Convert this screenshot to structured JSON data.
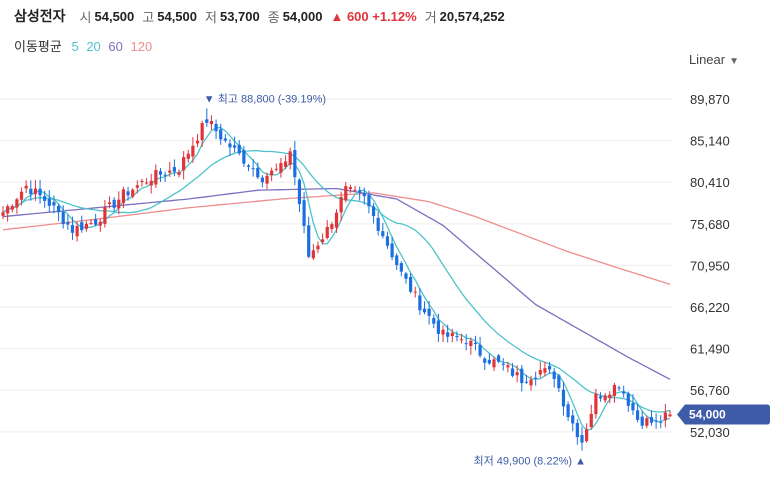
{
  "header": {
    "name": "삼성전자",
    "open_label": "시",
    "open": "54,500",
    "high_label": "고",
    "high": "54,500",
    "low_label": "저",
    "low": "53,700",
    "close_label": "종",
    "close": "54,000",
    "change": "▲ 600 +1.12%",
    "volume_label": "거",
    "volume": "20,574,252"
  },
  "ma_legend": {
    "label": "이동평균",
    "periods": [
      {
        "text": "5",
        "color": "#4fc3c9"
      },
      {
        "text": "20",
        "color": "#4fc3c9"
      },
      {
        "text": "60",
        "color": "#7e6fbf"
      },
      {
        "text": "120",
        "color": "#ee8e8e"
      }
    ]
  },
  "scale_button": {
    "label": "Linear",
    "icon": "chevron-down-icon"
  },
  "chart_data": {
    "type": "candlestick",
    "ylim": [
      49900,
      91500
    ],
    "y_ticks": [
      89870,
      85140,
      80410,
      75680,
      70950,
      66220,
      61490,
      56760,
      52030
    ],
    "y_tick_labels": [
      "89,870",
      "85,140",
      "80,410",
      "75,680",
      "70,950",
      "66,220",
      "61,490",
      "56,760",
      "52,030"
    ],
    "colors": {
      "up": "#e0333a",
      "down": "#1b6fe0",
      "ma5": "#4fc3c9",
      "ma20": "#4fc3c9",
      "ma60": "#7e6fbf",
      "ma120": "#ee8e8e",
      "tag": "#3d5ba7"
    },
    "high_annotation": "최고 88,800 (-39.19%)",
    "high_value": 88800,
    "low_annotation": "최저 49,900 (8.22%)",
    "low_value": 49900,
    "current_price_label": "54,000",
    "current_price": 54000,
    "anchors": [
      {
        "i": 0,
        "v": 77000
      },
      {
        "i": 5,
        "v": 80000
      },
      {
        "i": 10,
        "v": 78000
      },
      {
        "i": 15,
        "v": 75000
      },
      {
        "i": 20,
        "v": 76000
      },
      {
        "i": 26,
        "v": 79000
      },
      {
        "i": 32,
        "v": 81000
      },
      {
        "i": 38,
        "v": 82000
      },
      {
        "i": 44,
        "v": 87500
      },
      {
        "i": 48,
        "v": 85000
      },
      {
        "i": 52,
        "v": 83000
      },
      {
        "i": 56,
        "v": 81000
      },
      {
        "i": 60,
        "v": 82000
      },
      {
        "i": 62,
        "v": 84000
      },
      {
        "i": 64,
        "v": 78000
      },
      {
        "i": 66,
        "v": 72000
      },
      {
        "i": 70,
        "v": 75000
      },
      {
        "i": 74,
        "v": 79500
      },
      {
        "i": 78,
        "v": 78500
      },
      {
        "i": 82,
        "v": 74500
      },
      {
        "i": 86,
        "v": 70000
      },
      {
        "i": 90,
        "v": 66500
      },
      {
        "i": 95,
        "v": 63000
      },
      {
        "i": 100,
        "v": 62500
      },
      {
        "i": 104,
        "v": 60500
      },
      {
        "i": 108,
        "v": 59500
      },
      {
        "i": 112,
        "v": 58000
      },
      {
        "i": 116,
        "v": 59000
      },
      {
        "i": 119,
        "v": 58500
      },
      {
        "i": 122,
        "v": 54000
      },
      {
        "i": 125,
        "v": 51000
      },
      {
        "i": 128,
        "v": 56000
      },
      {
        "i": 133,
        "v": 57500
      },
      {
        "i": 137,
        "v": 53500
      },
      {
        "i": 141,
        "v": 53000
      },
      {
        "i": 144,
        "v": 54000
      }
    ],
    "ma60_points": [
      {
        "i": 0,
        "v": 76500
      },
      {
        "i": 20,
        "v": 77500
      },
      {
        "i": 40,
        "v": 78500
      },
      {
        "i": 55,
        "v": 79500
      },
      {
        "i": 72,
        "v": 79700
      },
      {
        "i": 85,
        "v": 78500
      },
      {
        "i": 95,
        "v": 75500
      },
      {
        "i": 105,
        "v": 71000
      },
      {
        "i": 115,
        "v": 66500
      },
      {
        "i": 125,
        "v": 63500
      },
      {
        "i": 135,
        "v": 60500
      },
      {
        "i": 144,
        "v": 58000
      }
    ],
    "ma120_points": [
      {
        "i": 0,
        "v": 75000
      },
      {
        "i": 20,
        "v": 76200
      },
      {
        "i": 40,
        "v": 77500
      },
      {
        "i": 60,
        "v": 78500
      },
      {
        "i": 80,
        "v": 79200
      },
      {
        "i": 92,
        "v": 78200
      },
      {
        "i": 102,
        "v": 76500
      },
      {
        "i": 112,
        "v": 74500
      },
      {
        "i": 122,
        "v": 72500
      },
      {
        "i": 132,
        "v": 70800
      },
      {
        "i": 144,
        "v": 68800
      }
    ]
  }
}
